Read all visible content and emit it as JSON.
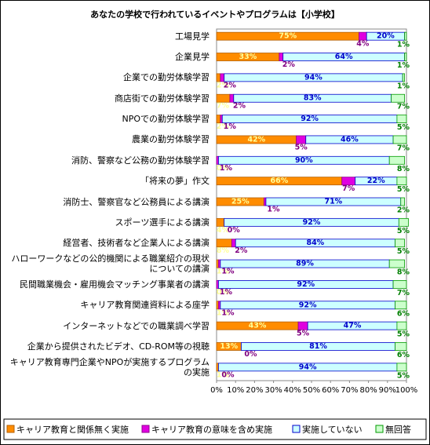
{
  "chart_data": {
    "type": "stacked-bar-horizontal",
    "title": "あなたの学校で行われているイベントやプログラムは【小学校】",
    "categories": [
      "工場見学",
      "企業見学",
      "企業での勤労体験学習",
      "商店街での勤労体験学習",
      "NPOでの勤労体験学習",
      "農業の勤労体験学習",
      "消防、警察など公務の勤労体験学習",
      "「将来の夢」作文",
      "消防士、警察官など公務員による講演",
      "スポーツ選手による講演",
      "経営者、技術者など企業人による講演",
      "ハローワークなどの公的機関による職業紹介の現状についての講演",
      "民間職業機会・雇用機会マッチング事業者の講演",
      "キャリア教育関連資料による座学",
      "インターネットなどでの職業調べ学習",
      "企業から提供されたビデオ、CD-ROM等の視聴",
      "キャリア教育専門企業やNPOが実施するプログラムの実施"
    ],
    "series": [
      {
        "name": "キャリア教育と関係無く実施",
        "color": "#ff8c00",
        "values": [
          75,
          33,
          2,
          7,
          2,
          42,
          0,
          66,
          25,
          4,
          8,
          1,
          0,
          1,
          43,
          13,
          1
        ],
        "value_labels": [
          "75%",
          "33%",
          "2%",
          "7%",
          "2%",
          "42%",
          "0%",
          "66%",
          "25%",
          "4%",
          "8%",
          "1%",
          "0%",
          "1%",
          "43%",
          "13%",
          "1%"
        ]
      },
      {
        "name": "キャリア教育の意味を含め実施",
        "color": "#e000e0",
        "values": [
          4,
          2,
          2,
          2,
          1,
          5,
          1,
          7,
          1,
          0,
          2,
          1,
          1,
          1,
          5,
          0,
          0
        ],
        "value_labels": [
          "4%",
          "2%",
          "2%",
          "2%",
          "1%",
          "5%",
          "1%",
          "7%",
          "1%",
          "0%",
          "2%",
          "1%",
          "1%",
          "1%",
          "5%",
          "0%",
          "0%"
        ]
      },
      {
        "name": "実施していない",
        "color": "#ccffff",
        "values": [
          20,
          64,
          94,
          83,
          92,
          46,
          90,
          22,
          71,
          92,
          84,
          89,
          92,
          92,
          47,
          81,
          94
        ],
        "value_labels": [
          "20%",
          "64%",
          "94%",
          "83%",
          "92%",
          "46%",
          "90%",
          "22%",
          "71%",
          "92%",
          "84%",
          "89%",
          "92%",
          "92%",
          "47%",
          "81%",
          "94%"
        ]
      },
      {
        "name": "無回答",
        "color": "#ccffcc",
        "values": [
          1,
          1,
          1,
          7,
          5,
          7,
          8,
          5,
          2,
          5,
          5,
          8,
          7,
          6,
          5,
          6,
          5
        ],
        "value_labels": [
          "1%",
          "1%",
          "1%",
          "7%",
          "5%",
          "7%",
          "8%",
          "5%",
          "2%",
          "5%",
          "5%",
          "8%",
          "7%",
          "6%",
          "5%",
          "6%",
          "5%"
        ]
      }
    ],
    "xlim": [
      0,
      100
    ],
    "xticks": [
      {
        "value": 0,
        "label": "0%"
      },
      {
        "value": 10,
        "label": "10%"
      },
      {
        "value": 20,
        "label": "20%"
      },
      {
        "value": 30,
        "label": "30%"
      },
      {
        "value": 40,
        "label": "40%"
      },
      {
        "value": 50,
        "label": "50%"
      },
      {
        "value": 60,
        "label": "60%"
      },
      {
        "value": 70,
        "label": "70%"
      },
      {
        "value": 80,
        "label": "80%"
      },
      {
        "value": 90,
        "label": "90%"
      },
      {
        "value": 100,
        "label": "100%"
      }
    ],
    "grid": false
  }
}
